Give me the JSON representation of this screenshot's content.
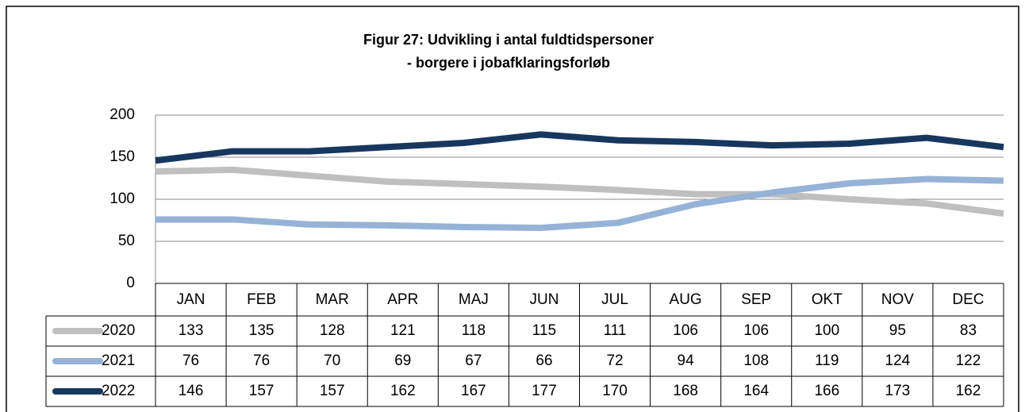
{
  "chart_data": {
    "type": "line",
    "title": "Figur 27: Udvikling i antal fuldtidspersoner",
    "subtitle": "- borgere i jobafklaringsforløb",
    "categories": [
      "JAN",
      "FEB",
      "MAR",
      "APR",
      "MAJ",
      "JUN",
      "JUL",
      "AUG",
      "SEP",
      "OKT",
      "NOV",
      "DEC"
    ],
    "series": [
      {
        "name": "2020",
        "color": "#bfbfbf",
        "values": [
          133,
          135,
          128,
          121,
          118,
          115,
          111,
          106,
          106,
          100,
          95,
          83
        ]
      },
      {
        "name": "2021",
        "color": "#95b3d7",
        "values": [
          76,
          76,
          70,
          69,
          67,
          66,
          72,
          94,
          108,
          119,
          124,
          122
        ]
      },
      {
        "name": "2022",
        "color": "#17375e",
        "values": [
          146,
          157,
          157,
          162,
          167,
          177,
          170,
          168,
          164,
          166,
          173,
          162
        ]
      }
    ],
    "ylim": [
      0,
      200
    ],
    "yticks": [
      0,
      50,
      100,
      150,
      200
    ],
    "grid": true
  }
}
